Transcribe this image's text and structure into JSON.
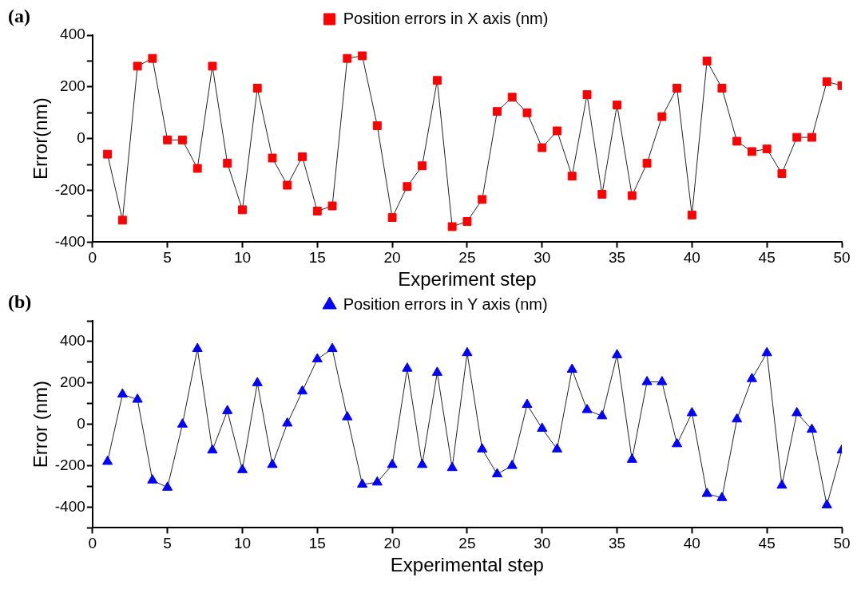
{
  "chart_data": [
    {
      "type": "line",
      "annotations": [
        "(a)"
      ],
      "xlabel": "Experiment step",
      "ylabel": "Error(nm)",
      "x": [
        1,
        2,
        3,
        4,
        5,
        6,
        7,
        8,
        9,
        10,
        11,
        12,
        13,
        14,
        15,
        16,
        17,
        18,
        19,
        20,
        21,
        22,
        23,
        24,
        25,
        26,
        27,
        28,
        29,
        30,
        31,
        32,
        33,
        34,
        35,
        36,
        37,
        38,
        39,
        40,
        41,
        42,
        43,
        44,
        45,
        46,
        47,
        48,
        49,
        50
      ],
      "series": [
        {
          "name": "Position errors in X axis (nm)",
          "color": "#ff0000",
          "marker": "square",
          "values": [
            -60,
            -315,
            280,
            310,
            -5,
            -5,
            -115,
            280,
            -95,
            -275,
            195,
            -75,
            -180,
            -70,
            -280,
            -260,
            310,
            320,
            50,
            -305,
            -185,
            -105,
            225,
            -340,
            -320,
            -235,
            105,
            160,
            100,
            -35,
            30,
            -145,
            170,
            -215,
            130,
            -220,
            -95,
            85,
            195,
            -295,
            300,
            195,
            -10,
            -50,
            -40,
            -135,
            5,
            5,
            220,
            205
          ]
        }
      ],
      "xlim": [
        0,
        50
      ],
      "xticks": [
        0,
        5,
        10,
        15,
        20,
        25,
        30,
        35,
        40,
        45,
        50
      ],
      "ylim": [
        -400,
        400
      ],
      "yticks": [
        -400,
        {
          "value": -300,
          "label": null
        },
        -200,
        {
          "value": -100,
          "label": null
        },
        0,
        {
          "value": 100,
          "label": null
        },
        200,
        {
          "value": 300,
          "label": null
        },
        400
      ],
      "grid": false,
      "legend": "top",
      "line_style": "solid"
    },
    {
      "type": "line",
      "annotations": [
        "(b)"
      ],
      "xlabel": "Experimental step",
      "ylabel": "Error (nm)",
      "x": [
        1,
        2,
        3,
        4,
        5,
        6,
        7,
        8,
        9,
        10,
        11,
        12,
        13,
        14,
        15,
        16,
        17,
        18,
        19,
        20,
        21,
        22,
        23,
        24,
        25,
        26,
        27,
        28,
        29,
        30,
        31,
        32,
        33,
        34,
        35,
        36,
        37,
        38,
        39,
        40,
        41,
        42,
        43,
        44,
        45,
        46,
        47,
        48,
        49,
        50
      ],
      "series": [
        {
          "name": "Position errors in Y axis (nm)",
          "color": "#0000ff",
          "marker": "triangle",
          "values": [
            -180,
            145,
            120,
            -270,
            -305,
            0,
            365,
            -125,
            65,
            -220,
            200,
            -195,
            5,
            160,
            315,
            365,
            35,
            -290,
            -280,
            -195,
            270,
            -195,
            250,
            -210,
            345,
            -120,
            -240,
            -200,
            95,
            -20,
            -120,
            265,
            70,
            40,
            335,
            -170,
            205,
            205,
            -95,
            55,
            -335,
            -355,
            25,
            220,
            345,
            -295,
            55,
            -25,
            -390,
            -125
          ]
        }
      ],
      "xlim": [
        0,
        50
      ],
      "xticks": [
        0,
        5,
        10,
        15,
        20,
        25,
        30,
        35,
        40,
        45,
        50
      ],
      "ylim": [
        -500,
        500
      ],
      "yticks": [
        {
          "value": -500,
          "label": null
        },
        -400,
        {
          "value": -300,
          "label": null
        },
        -200,
        {
          "value": -100,
          "label": null
        },
        0,
        {
          "value": 100,
          "label": null
        },
        200,
        {
          "value": 300,
          "label": null
        },
        400,
        {
          "value": 500,
          "label": null
        }
      ],
      "grid": false,
      "legend": "top",
      "line_style": "solid"
    }
  ]
}
